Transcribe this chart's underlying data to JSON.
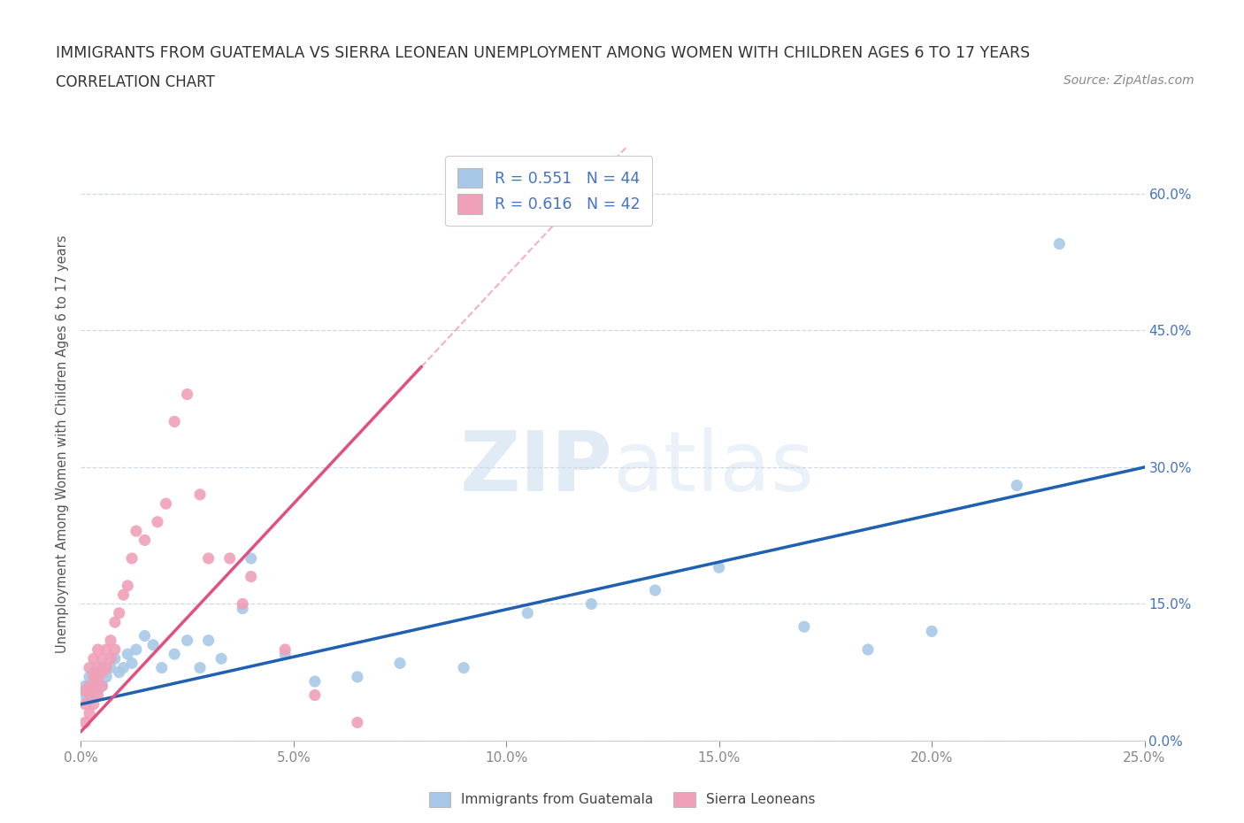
{
  "title_line1": "IMMIGRANTS FROM GUATEMALA VS SIERRA LEONEAN UNEMPLOYMENT AMONG WOMEN WITH CHILDREN AGES 6 TO 17 YEARS",
  "title_line2": "CORRELATION CHART",
  "source": "Source: ZipAtlas.com",
  "ylabel": "Unemployment Among Women with Children Ages 6 to 17 years",
  "xlim": [
    0.0,
    0.25
  ],
  "ylim": [
    0.0,
    0.65
  ],
  "xticks": [
    0.0,
    0.05,
    0.1,
    0.15,
    0.2,
    0.25
  ],
  "yticks": [
    0.0,
    0.15,
    0.3,
    0.45,
    0.6
  ],
  "ytick_labels": [
    "0.0%",
    "15.0%",
    "30.0%",
    "45.0%",
    "60.0%"
  ],
  "xtick_labels": [
    "0.0%",
    "5.0%",
    "10.0%",
    "15.0%",
    "20.0%",
    "25.0%"
  ],
  "blue_color": "#a8c8e8",
  "blue_line_color": "#2060b0",
  "pink_color": "#f0a0b8",
  "pink_line_color": "#e05080",
  "watermark_zip": "ZIP",
  "watermark_atlas": "atlas",
  "legend_label1": "Immigrants from Guatemala",
  "legend_label2": "Sierra Leoneans",
  "R1": "0.551",
  "N1": "44",
  "R2": "0.616",
  "N2": "42",
  "blue_scatter_x": [
    0.001,
    0.001,
    0.002,
    0.002,
    0.002,
    0.003,
    0.003,
    0.003,
    0.004,
    0.004,
    0.005,
    0.005,
    0.006,
    0.007,
    0.008,
    0.009,
    0.01,
    0.011,
    0.012,
    0.013,
    0.015,
    0.017,
    0.019,
    0.022,
    0.025,
    0.028,
    0.03,
    0.033,
    0.038,
    0.04,
    0.048,
    0.055,
    0.065,
    0.075,
    0.09,
    0.105,
    0.12,
    0.135,
    0.15,
    0.17,
    0.185,
    0.2,
    0.22,
    0.23
  ],
  "blue_scatter_y": [
    0.05,
    0.06,
    0.045,
    0.06,
    0.07,
    0.05,
    0.065,
    0.075,
    0.055,
    0.07,
    0.06,
    0.08,
    0.07,
    0.08,
    0.09,
    0.075,
    0.08,
    0.095,
    0.085,
    0.1,
    0.115,
    0.105,
    0.08,
    0.095,
    0.11,
    0.08,
    0.11,
    0.09,
    0.145,
    0.2,
    0.095,
    0.065,
    0.07,
    0.085,
    0.08,
    0.14,
    0.15,
    0.165,
    0.19,
    0.125,
    0.1,
    0.12,
    0.28,
    0.545
  ],
  "pink_scatter_x": [
    0.001,
    0.001,
    0.001,
    0.002,
    0.002,
    0.002,
    0.002,
    0.003,
    0.003,
    0.003,
    0.003,
    0.004,
    0.004,
    0.004,
    0.004,
    0.005,
    0.005,
    0.005,
    0.006,
    0.006,
    0.007,
    0.007,
    0.008,
    0.008,
    0.009,
    0.01,
    0.011,
    0.012,
    0.013,
    0.015,
    0.018,
    0.02,
    0.022,
    0.025,
    0.028,
    0.03,
    0.035,
    0.038,
    0.04,
    0.048,
    0.055,
    0.065
  ],
  "pink_scatter_y": [
    0.02,
    0.04,
    0.055,
    0.03,
    0.05,
    0.06,
    0.08,
    0.04,
    0.06,
    0.07,
    0.09,
    0.05,
    0.07,
    0.08,
    0.1,
    0.06,
    0.075,
    0.09,
    0.08,
    0.1,
    0.09,
    0.11,
    0.1,
    0.13,
    0.14,
    0.16,
    0.17,
    0.2,
    0.23,
    0.22,
    0.24,
    0.26,
    0.35,
    0.38,
    0.27,
    0.2,
    0.2,
    0.15,
    0.18,
    0.1,
    0.05,
    0.02
  ],
  "background_color": "#ffffff",
  "grid_color": "#d0d8e4",
  "title_color": "#333333",
  "axis_label_color": "#555555",
  "right_tick_color": "#4472c4"
}
